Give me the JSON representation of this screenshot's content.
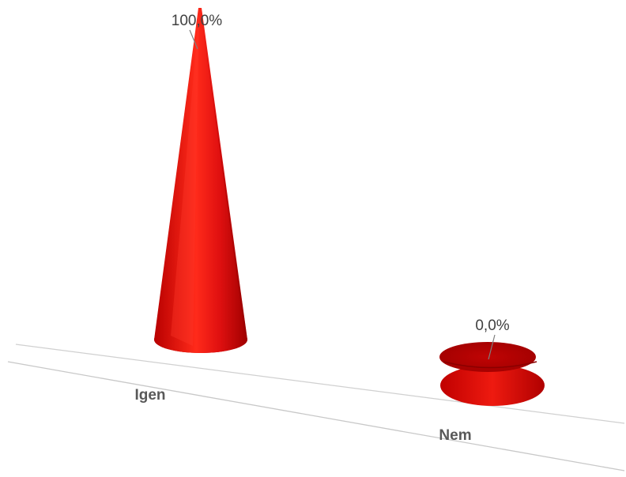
{
  "chart_data": {
    "type": "bar",
    "shape": "3d-cone",
    "categories": [
      "Igen",
      "Nem"
    ],
    "values": [
      100.0,
      0.0
    ],
    "data_labels": [
      "100,0%",
      "0,0%"
    ],
    "title": "",
    "xlabel": "",
    "ylabel": "",
    "ylim": [
      0,
      100
    ],
    "grid": false,
    "legend": "none",
    "colors": {
      "series": "#e01010",
      "dark": "#a00000",
      "light": "#ff6a5a",
      "axis": "#d0d0d0"
    }
  }
}
